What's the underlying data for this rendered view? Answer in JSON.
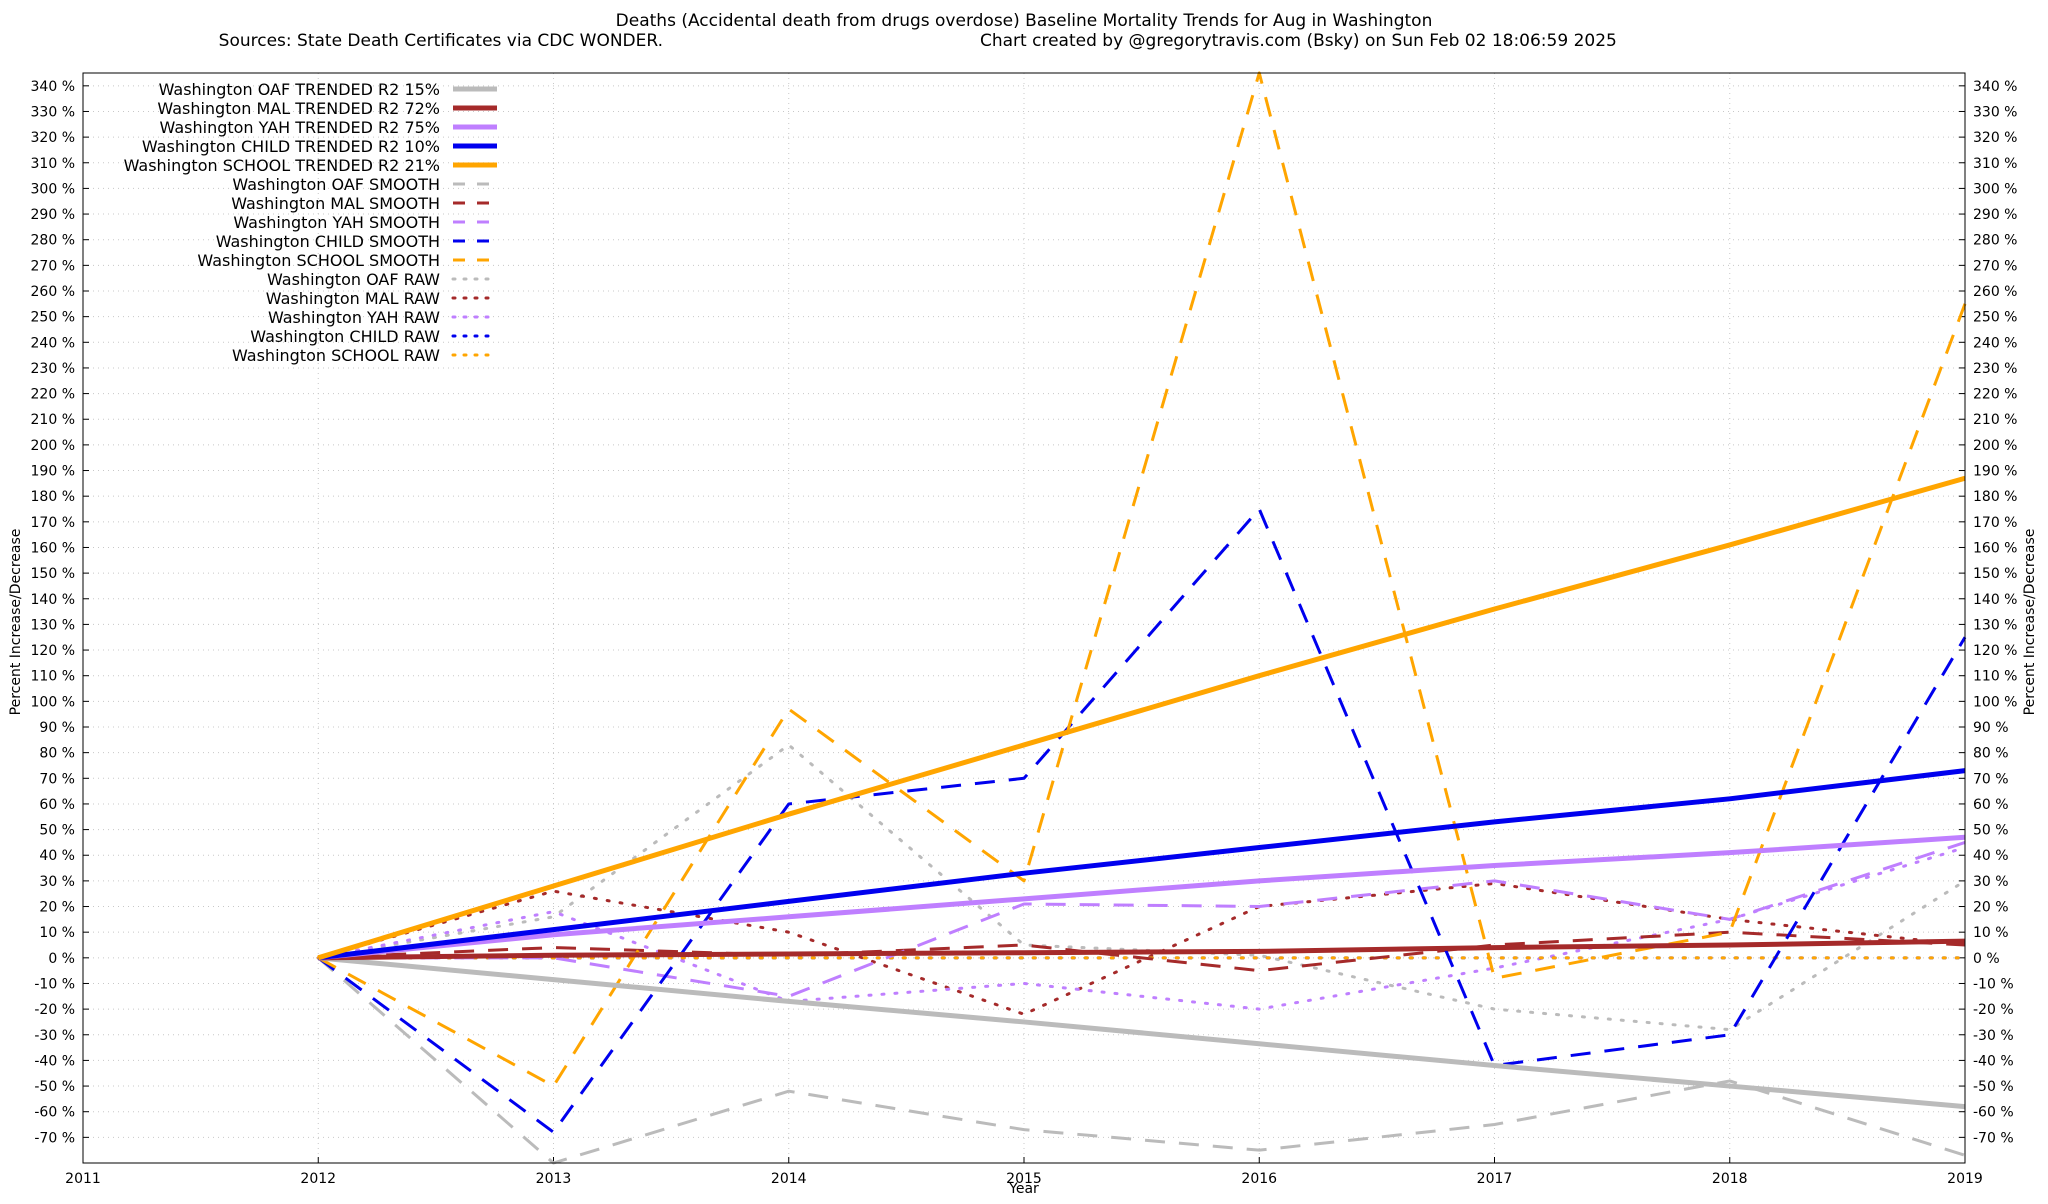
{
  "chart_data": {
    "type": "line",
    "title": "Deaths (Accidental death from drugs overdose)  Baseline Mortality Trends for Aug in Washington",
    "subtitle_left": "Sources: State Death Certificates via CDC WONDER.",
    "subtitle_right": "Chart created by @gregorytravis.com (Bsky) on Sun Feb 02 18:06:59 2025",
    "xlabel": "Year",
    "ylabel_left": "Percent Increase/Decrease",
    "ylabel_right": "Percent Increase/Decrease",
    "xlim": [
      2011,
      2019
    ],
    "ylim": [
      -80,
      345
    ],
    "x_ticks": [
      "2011",
      "2012",
      "2013",
      "2014",
      "2015",
      "2016",
      "2017",
      "2018",
      "2019"
    ],
    "y_ticks": [
      -70,
      -60,
      -50,
      -40,
      -30,
      -20,
      -10,
      0,
      10,
      20,
      30,
      40,
      50,
      60,
      70,
      80,
      90,
      100,
      110,
      120,
      130,
      140,
      150,
      160,
      170,
      180,
      190,
      200,
      210,
      220,
      230,
      240,
      250,
      260,
      270,
      280,
      290,
      300,
      310,
      320,
      330,
      340
    ],
    "y_tick_suffix": " %",
    "grid": true,
    "legend_position": "top-left",
    "colors": {
      "OAF": "#bbbbbb",
      "MAL": "#a52a2a",
      "YAH": "#bf7fff",
      "CHILD": "#0000ee",
      "SCHOOL": "#ffa500"
    },
    "series": [
      {
        "name": "Washington OAF TRENDED R2  15%",
        "group": "OAF",
        "style": "trend",
        "x": [
          2012,
          2013,
          2014,
          2015,
          2016,
          2017,
          2018,
          2019
        ],
        "values": [
          0,
          -8.5,
          -17,
          -25,
          -33.5,
          -42,
          -50,
          -58
        ]
      },
      {
        "name": "Washington MAL TRENDED R2  72%",
        "group": "MAL",
        "style": "trend",
        "x": [
          2012,
          2013,
          2014,
          2015,
          2016,
          2017,
          2018,
          2019
        ],
        "values": [
          0,
          1,
          1.5,
          2,
          2.5,
          4,
          5,
          6.5
        ]
      },
      {
        "name": "Washington YAH TRENDED R2  75%",
        "group": "YAH",
        "style": "trend",
        "x": [
          2012,
          2013,
          2014,
          2015,
          2016,
          2017,
          2018,
          2019
        ],
        "values": [
          0,
          9,
          16,
          23,
          30,
          36,
          41,
          47
        ]
      },
      {
        "name": "Washington CHILD TRENDED R2  10%",
        "group": "CHILD",
        "style": "trend",
        "x": [
          2012,
          2013,
          2014,
          2015,
          2016,
          2017,
          2018,
          2019
        ],
        "values": [
          0,
          11,
          22,
          33,
          43,
          53,
          62,
          73
        ]
      },
      {
        "name": "Washington SCHOOL TRENDED R2  21%",
        "group": "SCHOOL",
        "style": "trend",
        "x": [
          2012,
          2013,
          2014,
          2015,
          2016,
          2017,
          2018,
          2019
        ],
        "values": [
          0,
          28,
          56,
          83,
          110,
          136,
          161,
          187
        ]
      },
      {
        "name": "Washington OAF SMOOTH",
        "group": "OAF",
        "style": "smooth",
        "x": [
          2012,
          2013,
          2014,
          2015,
          2016,
          2017,
          2018,
          2019
        ],
        "values": [
          0,
          -80,
          -52,
          -67,
          -75,
          -65,
          -48,
          -77
        ]
      },
      {
        "name": "Washington MAL SMOOTH",
        "group": "MAL",
        "style": "smooth",
        "x": [
          2012,
          2013,
          2014,
          2015,
          2016,
          2017,
          2018,
          2019
        ],
        "values": [
          0,
          4,
          1,
          5,
          -5,
          5,
          10,
          5
        ]
      },
      {
        "name": "Washington YAH SMOOTH",
        "group": "YAH",
        "style": "smooth",
        "x": [
          2012,
          2013,
          2014,
          2015,
          2016,
          2017,
          2018,
          2019
        ],
        "values": [
          0,
          0,
          -15,
          21,
          20,
          30,
          15,
          45
        ]
      },
      {
        "name": "Washington CHILD SMOOTH",
        "group": "CHILD",
        "style": "smooth",
        "x": [
          2012,
          2013,
          2014,
          2015,
          2016,
          2017,
          2018,
          2019
        ],
        "values": [
          0,
          -68,
          60,
          70,
          175,
          -42,
          -30,
          125
        ]
      },
      {
        "name": "Washington SCHOOL SMOOTH",
        "group": "SCHOOL",
        "style": "smooth",
        "x": [
          2012,
          2013,
          2014,
          2015,
          2016,
          2017,
          2018,
          2019
        ],
        "values": [
          0,
          -50,
          97,
          30,
          345,
          -8,
          10,
          255
        ]
      },
      {
        "name": "Washington OAF RAW",
        "group": "OAF",
        "style": "raw",
        "x": [
          2012,
          2013,
          2014,
          2015,
          2016,
          2017,
          2018,
          2019
        ],
        "values": [
          0,
          16,
          83,
          5,
          1,
          -20,
          -28,
          30
        ]
      },
      {
        "name": "Washington MAL RAW",
        "group": "MAL",
        "style": "raw",
        "x": [
          2012,
          2013,
          2014,
          2015,
          2016,
          2017,
          2018,
          2019
        ],
        "values": [
          0,
          26,
          10,
          -22,
          20,
          29,
          15,
          5
        ]
      },
      {
        "name": "Washington YAH RAW",
        "group": "YAH",
        "style": "raw",
        "x": [
          2012,
          2013,
          2014,
          2015,
          2016,
          2017,
          2018,
          2019
        ],
        "values": [
          0,
          18,
          -17,
          -10,
          -20,
          -4,
          15,
          43
        ]
      },
      {
        "name": "Washington CHILD RAW",
        "group": "CHILD",
        "style": "raw",
        "x": [
          2012,
          2013,
          2014,
          2015,
          2016,
          2017,
          2018,
          2019
        ],
        "values": [
          0,
          0,
          0,
          0,
          0,
          0,
          0,
          0
        ]
      },
      {
        "name": "Washington SCHOOL RAW",
        "group": "SCHOOL",
        "style": "raw",
        "x": [
          2012,
          2013,
          2014,
          2015,
          2016,
          2017,
          2018,
          2019
        ],
        "values": [
          0,
          0,
          0,
          0,
          0,
          0,
          0,
          0
        ]
      }
    ]
  }
}
